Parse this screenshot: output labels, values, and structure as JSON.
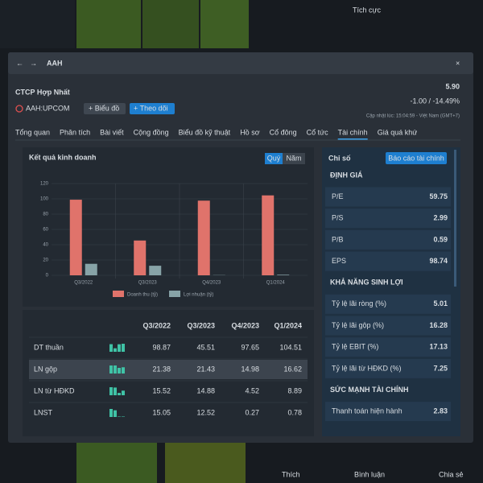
{
  "background": {
    "tag": "Tích cực",
    "actions": [
      "Thích",
      "Bình luận",
      "Chia sẻ"
    ]
  },
  "header": {
    "window_title": "AAH",
    "company": "CTCP Hợp Nhất",
    "ticker": "AAH:UPCOM",
    "buttons": [
      "+ Biểu đồ",
      "+ Theo dõi"
    ],
    "price": "5.90",
    "change": "-1.00 / -14.49%",
    "updated": "Cập nhật lúc: 15:04:59 - Việt Nam (GMT+7)"
  },
  "tabs": {
    "items": [
      "Tổng quan",
      "Phân tích",
      "Bài viết",
      "Cộng đồng",
      "Biểu đồ kỹ thuật",
      "Hồ sơ",
      "Cổ đông",
      "Cổ tức",
      "Tài chính",
      "Giá quá khứ"
    ],
    "active": 8
  },
  "chart_data": {
    "type": "bar",
    "title": "Kết quả kinh doanh",
    "toggles": [
      "Quý",
      "Năm"
    ],
    "categories": [
      "Q3/2022",
      "Q3/2023",
      "Q4/2023",
      "Q1/2024"
    ],
    "series": [
      {
        "name": "Doanh thu (tỷ)",
        "color": "#e0736b",
        "values": [
          98.87,
          45.51,
          97.65,
          104.51
        ]
      },
      {
        "name": "Lợi nhuận (tỷ)",
        "color": "#87a3a7",
        "values": [
          15.05,
          12.52,
          0.27,
          0.78
        ]
      }
    ],
    "ylim": [
      0,
      120
    ],
    "yticks": [
      0,
      20,
      40,
      60,
      80,
      100,
      120
    ],
    "grid": true
  },
  "table": {
    "columns": [
      "Q3/2022",
      "Q3/2023",
      "Q4/2023",
      "Q1/2024"
    ],
    "rows": [
      {
        "name": "DT thuần",
        "values": [
          98.87,
          45.51,
          97.65,
          104.51
        ]
      },
      {
        "name": "LN gộp",
        "values": [
          21.38,
          21.43,
          14.98,
          16.62
        ]
      },
      {
        "name": "LN từ HĐKD",
        "values": [
          15.52,
          14.88,
          4.52,
          8.89
        ]
      },
      {
        "name": "LNST",
        "values": [
          15.05,
          12.52,
          0.27,
          0.78
        ]
      }
    ],
    "highlight": 1
  },
  "ratios": {
    "title": "Chỉ số",
    "button": "Báo cáo tài chính",
    "sections": [
      {
        "name": "ĐỊNH GIÁ",
        "items": [
          [
            "P/E",
            "59.75"
          ],
          [
            "P/S",
            "2.99"
          ],
          [
            "P/B",
            "0.59"
          ],
          [
            "EPS",
            "98.74"
          ]
        ]
      },
      {
        "name": "KHẢ NĂNG SINH LỢI",
        "items": [
          [
            "Tỷ lệ lãi ròng (%)",
            "5.01"
          ],
          [
            "Tỷ lệ lãi gộp (%)",
            "16.28"
          ],
          [
            "Tỷ lệ EBIT (%)",
            "17.13"
          ],
          [
            "Tỷ lệ lãi từ HĐKD (%)",
            "7.25"
          ]
        ]
      },
      {
        "name": "SỨC MẠNH TÀI CHÍNH",
        "items": [
          [
            "Thanh toán hiện hành",
            "2.83"
          ]
        ]
      }
    ]
  }
}
